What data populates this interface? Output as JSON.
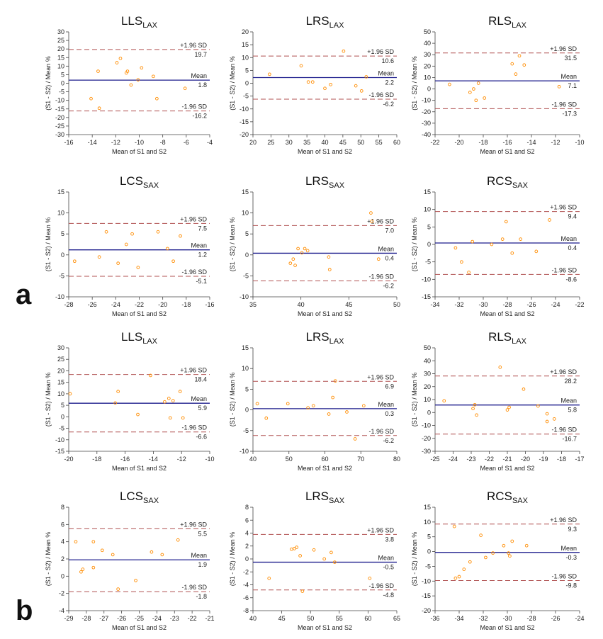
{
  "figure": {
    "panel_labels": [
      "a",
      "b"
    ]
  },
  "colors": {
    "mean_line": "#1c1c8c",
    "limit_line": "#b05050",
    "points": "#ff8c00",
    "axis": "#444444",
    "text": "#222222"
  },
  "chart_data": [
    {
      "type": "scatter",
      "panel": "a",
      "title": "LLS",
      "subscript": "LAX",
      "xlabel": "Mean of S1 and S2",
      "ylabel": "(S1 - S2) / Mean %",
      "xlim": [
        -16,
        -4
      ],
      "xticks": [
        -16,
        -14,
        -12,
        -10,
        -8,
        -6,
        -4
      ],
      "ylim": [
        -30,
        30
      ],
      "yticks": [
        -30,
        -25,
        -20,
        -15,
        -10,
        -5,
        0,
        5,
        10,
        15,
        20,
        25,
        30
      ],
      "upper_label": "+1.96 SD",
      "upper": 19.7,
      "upper_text": "19.7",
      "mean_label": "Mean",
      "mean": 1.8,
      "mean_text": "1.8",
      "lower_label": "-1.96 SD",
      "lower": -16.2,
      "lower_text": "-16.2",
      "points": [
        [
          -14.1,
          -9
        ],
        [
          -13.5,
          7
        ],
        [
          -13.4,
          -14.6
        ],
        [
          -11.9,
          12
        ],
        [
          -11.6,
          14.5
        ],
        [
          -11.1,
          6
        ],
        [
          -11.0,
          7
        ],
        [
          -10.7,
          -1
        ],
        [
          -10.1,
          2
        ],
        [
          -9.8,
          9
        ],
        [
          -8.8,
          4
        ],
        [
          -8.5,
          -9
        ],
        [
          -6.1,
          -3
        ]
      ]
    },
    {
      "type": "scatter",
      "panel": "a",
      "title": "LRS",
      "subscript": "LAX",
      "xlabel": "Mean of S1 and S2",
      "ylabel": "(S1 - S2) / Mean %",
      "xlim": [
        20,
        60
      ],
      "xticks": [
        20,
        25,
        30,
        35,
        40,
        45,
        50,
        55,
        60
      ],
      "ylim": [
        -20,
        20
      ],
      "yticks": [
        -20,
        -15,
        -10,
        -5,
        0,
        5,
        10,
        15,
        20
      ],
      "upper_label": "+1.96 SD",
      "upper": 10.6,
      "upper_text": "10.6",
      "mean_label": "Mean",
      "mean": 2.2,
      "mean_text": "2.2",
      "lower_label": "-1.96 SD",
      "lower": -6.2,
      "lower_text": "-6.2",
      "points": [
        [
          24.6,
          3.5
        ],
        [
          33.4,
          6.8
        ],
        [
          35.4,
          0.5
        ],
        [
          36.6,
          0.5
        ],
        [
          40.0,
          -2
        ],
        [
          41.6,
          -0.5
        ],
        [
          45.2,
          12.5
        ],
        [
          48.6,
          -1
        ],
        [
          50.2,
          -3
        ],
        [
          51.5,
          2.5
        ]
      ]
    },
    {
      "type": "scatter",
      "panel": "a",
      "title": "RLS",
      "subscript": "LAX",
      "xlabel": "Mean of S1 and S2",
      "ylabel": "(S1 - S2) / Mean %",
      "xlim": [
        -22,
        -10
      ],
      "xticks": [
        -22,
        -20,
        -18,
        -16,
        -14,
        -12,
        -10
      ],
      "ylim": [
        -40,
        50
      ],
      "yticks": [
        -40,
        -30,
        -20,
        -10,
        0,
        10,
        20,
        30,
        40,
        50
      ],
      "upper_label": "+1.96 SD",
      "upper": 31.5,
      "upper_text": "31.5",
      "mean_label": "Mean",
      "mean": 7.1,
      "mean_text": "7.1",
      "lower_label": "-1.96 SD",
      "lower": -17.3,
      "lower_text": "-17.3",
      "points": [
        [
          -20.8,
          4
        ],
        [
          -19.1,
          -3
        ],
        [
          -18.8,
          0
        ],
        [
          -18.6,
          -10
        ],
        [
          -18.4,
          5
        ],
        [
          -17.9,
          -8
        ],
        [
          -15.6,
          22
        ],
        [
          -15.3,
          13
        ],
        [
          -15.0,
          29
        ],
        [
          -14.6,
          21
        ],
        [
          -11.7,
          2
        ]
      ]
    },
    {
      "type": "scatter",
      "panel": "a",
      "title": "LCS",
      "subscript": "SAX",
      "xlabel": "Mean of S1 and S2",
      "ylabel": "(S1 - S2) / Mean %",
      "xlim": [
        -28,
        -16
      ],
      "xticks": [
        -28,
        -26,
        -24,
        -22,
        -20,
        -18,
        -16
      ],
      "ylim": [
        -10,
        15
      ],
      "yticks": [
        -10,
        -5,
        0,
        5,
        10,
        15
      ],
      "upper_label": "+1.96 SD",
      "upper": 7.5,
      "upper_text": "7.5",
      "mean_label": "Mean",
      "mean": 1.2,
      "mean_text": "1.2",
      "lower_label": "-1.96 SD",
      "lower": -5.1,
      "lower_text": "-5.1",
      "points": [
        [
          -27.5,
          -1.5
        ],
        [
          -25.4,
          -0.5
        ],
        [
          -24.8,
          5.5
        ],
        [
          -23.8,
          -2
        ],
        [
          -23.1,
          2.5
        ],
        [
          -22.6,
          5
        ],
        [
          -22.1,
          -3
        ],
        [
          -20.4,
          5.5
        ],
        [
          -19.6,
          1.5
        ],
        [
          -19.1,
          -1.5
        ],
        [
          -18.5,
          4.5
        ]
      ]
    },
    {
      "type": "scatter",
      "panel": "a",
      "title": "LRS",
      "subscript": "SAX",
      "xlabel": "Mean of S1 and S2",
      "ylabel": "(S1 - S2) / Mean %",
      "xlim": [
        35,
        50
      ],
      "xticks": [
        35,
        40,
        45,
        50
      ],
      "ylim": [
        -10,
        15
      ],
      "yticks": [
        -10,
        -5,
        0,
        5,
        10,
        15
      ],
      "upper_label": "+1.96 SD",
      "upper": 7.0,
      "upper_text": "7.0",
      "mean_label": "Mean",
      "mean": 0.4,
      "mean_text": "0.4",
      "lower_label": "-1.96 SD",
      "lower": -6.2,
      "lower_text": "-6.2",
      "points": [
        [
          38.9,
          -2
        ],
        [
          39.2,
          -1
        ],
        [
          39.4,
          -2.5
        ],
        [
          39.7,
          1.5
        ],
        [
          40.1,
          0.5
        ],
        [
          40.4,
          1.5
        ],
        [
          40.7,
          1
        ],
        [
          42.9,
          -0.5
        ],
        [
          43.0,
          -3.5
        ],
        [
          47.3,
          10
        ],
        [
          47.4,
          8
        ],
        [
          48.1,
          -1
        ]
      ]
    },
    {
      "type": "scatter",
      "panel": "a",
      "title": "RCS",
      "subscript": "SAX",
      "xlabel": "Mean of S1 and S2",
      "ylabel": "(S1 - S2) / Mean %",
      "xlim": [
        -34,
        -22
      ],
      "xticks": [
        -34,
        -32,
        -30,
        -28,
        -26,
        -24,
        -22
      ],
      "ylim": [
        -15,
        15
      ],
      "yticks": [
        -15,
        -10,
        -5,
        0,
        5,
        10,
        15
      ],
      "upper_label": "+1.96 SD",
      "upper": 9.4,
      "upper_text": "9.4",
      "mean_label": "Mean",
      "mean": 0.4,
      "mean_text": "0.4",
      "lower_label": "-1.96 SD",
      "lower": -8.6,
      "lower_text": "-8.6",
      "points": [
        [
          -32.3,
          -1
        ],
        [
          -31.8,
          -5
        ],
        [
          -31.2,
          -8
        ],
        [
          -30.9,
          0.8
        ],
        [
          -29.3,
          0
        ],
        [
          -28.4,
          1.5
        ],
        [
          -28.1,
          6.5
        ],
        [
          -27.6,
          -2.5
        ],
        [
          -26.9,
          1.5
        ],
        [
          -25.6,
          -2
        ],
        [
          -24.5,
          7
        ]
      ]
    },
    {
      "type": "scatter",
      "panel": "b",
      "title": "LLS",
      "subscript": "LAX",
      "xlabel": "Mean of S1 and S2",
      "ylabel": "(S1 - S2) / Mean %",
      "xlim": [
        -20,
        -10
      ],
      "xticks": [
        -20,
        -18,
        -16,
        -14,
        -12,
        -10
      ],
      "ylim": [
        -15,
        30
      ],
      "yticks": [
        -15,
        -10,
        -5,
        0,
        5,
        10,
        15,
        20,
        25,
        30
      ],
      "upper_label": "+1.96 SD",
      "upper": 18.4,
      "upper_text": "18.4",
      "mean_label": "Mean",
      "mean": 5.9,
      "mean_text": "5.9",
      "lower_label": "-1.96 SD",
      "lower": -6.6,
      "lower_text": "-6.6",
      "points": [
        [
          -19.9,
          10
        ],
        [
          -16.7,
          6
        ],
        [
          -16.5,
          11
        ],
        [
          -15.1,
          1
        ],
        [
          -14.2,
          18
        ],
        [
          -13.2,
          6.5
        ],
        [
          -12.9,
          8
        ],
        [
          -12.8,
          -0.5
        ],
        [
          -12.6,
          7
        ],
        [
          -12.1,
          11
        ],
        [
          -11.9,
          -0.5
        ]
      ]
    },
    {
      "type": "scatter",
      "panel": "b",
      "title": "LRS",
      "subscript": "LAX",
      "xlabel": "Mean of S1 and S2",
      "ylabel": "(S1 - S2) / Mean %",
      "xlim": [
        40,
        80
      ],
      "xticks": [
        40,
        50,
        60,
        70,
        80
      ],
      "ylim": [
        -10,
        15
      ],
      "yticks": [
        -10,
        -5,
        0,
        5,
        10,
        15
      ],
      "upper_label": "+1.96 SD",
      "upper": 6.9,
      "upper_text": "6.9",
      "mean_label": "Mean",
      "mean": 0.3,
      "mean_text": "0.3",
      "lower_label": "-1.96 SD",
      "lower": -6.2,
      "lower_text": "-6.2",
      "points": [
        [
          41.2,
          1.5
        ],
        [
          43.7,
          -2
        ],
        [
          49.7,
          1.5
        ],
        [
          55.3,
          0.5
        ],
        [
          56.8,
          1
        ],
        [
          61.1,
          -1
        ],
        [
          62.2,
          3
        ],
        [
          62.9,
          7
        ],
        [
          66.1,
          -0.5
        ],
        [
          68.4,
          -7
        ],
        [
          70.8,
          1
        ]
      ]
    },
    {
      "type": "scatter",
      "panel": "b",
      "title": "RLS",
      "subscript": "LAX",
      "xlabel": "Mean of S1 and S2",
      "ylabel": "(S1 - S2) / Mean %",
      "xlim": [
        -25,
        -17
      ],
      "xticks": [
        -25,
        -24,
        -23,
        -22,
        -21,
        -20,
        -19,
        -18,
        -17
      ],
      "ylim": [
        -30,
        50
      ],
      "yticks": [
        -30,
        -20,
        -10,
        0,
        10,
        20,
        30,
        40,
        50
      ],
      "upper_label": "+1.96 SD",
      "upper": 28.2,
      "upper_text": "28.2",
      "mean_label": "Mean",
      "mean": 5.8,
      "mean_text": "5.8",
      "lower_label": "-1.96 SD",
      "lower": -16.7,
      "lower_text": "-16.7",
      "points": [
        [
          -24.5,
          9
        ],
        [
          -22.9,
          3
        ],
        [
          -22.8,
          6
        ],
        [
          -22.7,
          -2
        ],
        [
          -21.4,
          35
        ],
        [
          -21.0,
          2
        ],
        [
          -20.9,
          4
        ],
        [
          -20.1,
          18
        ],
        [
          -19.3,
          5
        ],
        [
          -18.8,
          -1
        ],
        [
          -18.4,
          -5
        ],
        [
          -18.8,
          -7
        ]
      ]
    },
    {
      "type": "scatter",
      "panel": "b",
      "title": "LCS",
      "subscript": "SAX",
      "xlabel": "Mean of S1 and S2",
      "ylabel": "(S1 - S2) / Mean %",
      "xlim": [
        -29,
        -21
      ],
      "xticks": [
        -29,
        -28,
        -27,
        -26,
        -25,
        -24,
        -23,
        -22,
        -21
      ],
      "ylim": [
        -4,
        8
      ],
      "yticks": [
        -4,
        -2,
        0,
        2,
        4,
        6,
        8
      ],
      "upper_label": "+1.96 SD",
      "upper": 5.5,
      "upper_text": "5.5",
      "mean_label": "Mean",
      "mean": 1.9,
      "mean_text": "1.9",
      "lower_label": "-1.96 SD",
      "lower": -1.8,
      "lower_text": "-1.8",
      "points": [
        [
          -28.6,
          4
        ],
        [
          -28.3,
          0.5
        ],
        [
          -28.2,
          0.8
        ],
        [
          -27.6,
          1
        ],
        [
          -27.6,
          4
        ],
        [
          -27.1,
          3
        ],
        [
          -26.5,
          2.5
        ],
        [
          -26.2,
          -1.5
        ],
        [
          -25.2,
          -0.5
        ],
        [
          -24.3,
          2.8
        ],
        [
          -23.7,
          2.5
        ],
        [
          -22.8,
          4.2
        ]
      ]
    },
    {
      "type": "scatter",
      "panel": "b",
      "title": "LRS",
      "subscript": "SAX",
      "xlabel": "Mean of S1 and S2",
      "ylabel": "(S1 - S2) / Mean %",
      "xlim": [
        40,
        65
      ],
      "xticks": [
        40,
        45,
        50,
        55,
        60,
        65
      ],
      "ylim": [
        -8,
        8
      ],
      "yticks": [
        -8,
        -6,
        -4,
        -2,
        0,
        2,
        4,
        6,
        8
      ],
      "upper_label": "+1.96 SD",
      "upper": 3.8,
      "upper_text": "3.8",
      "mean_label": "Mean",
      "mean": -0.5,
      "mean_text": "-0.5",
      "lower_label": "-1.96 SD",
      "lower": -4.8,
      "lower_text": "-4.8",
      "points": [
        [
          42.8,
          -3
        ],
        [
          46.7,
          1.5
        ],
        [
          47.2,
          1.6
        ],
        [
          47.6,
          1.8
        ],
        [
          48.2,
          0.5
        ],
        [
          48.6,
          -5
        ],
        [
          50.6,
          1.4
        ],
        [
          52.4,
          0
        ],
        [
          53.6,
          1
        ],
        [
          54.2,
          -0.5
        ],
        [
          60.3,
          -3
        ]
      ]
    },
    {
      "type": "scatter",
      "panel": "b",
      "title": "RCS",
      "subscript": "SAX",
      "xlabel": "Mean of S1 and S2",
      "ylabel": "(S1 - S2) / Mean %",
      "xlim": [
        -36,
        -24
      ],
      "xticks": [
        -36,
        -34,
        -32,
        -30,
        -28,
        -26,
        -24
      ],
      "ylim": [
        -20,
        15
      ],
      "yticks": [
        -20,
        -15,
        -10,
        -5,
        0,
        5,
        10,
        15
      ],
      "upper_label": "+1.96 SD",
      "upper": 9.3,
      "upper_text": "9.3",
      "mean_label": "Mean",
      "mean": -0.3,
      "mean_text": "-0.3",
      "lower_label": "-1.96 SD",
      "lower": -9.8,
      "lower_text": "-9.8",
      "points": [
        [
          -34.4,
          8.5
        ],
        [
          -34.3,
          -9
        ],
        [
          -34.0,
          -8.5
        ],
        [
          -33.6,
          -6
        ],
        [
          -33.1,
          -3.5
        ],
        [
          -32.2,
          5.5
        ],
        [
          -31.8,
          -2
        ],
        [
          -31.2,
          -0.5
        ],
        [
          -30.3,
          2
        ],
        [
          -29.9,
          -0.5
        ],
        [
          -29.8,
          -1.5
        ],
        [
          -29.6,
          3.5
        ],
        [
          -28.4,
          2
        ]
      ]
    }
  ]
}
